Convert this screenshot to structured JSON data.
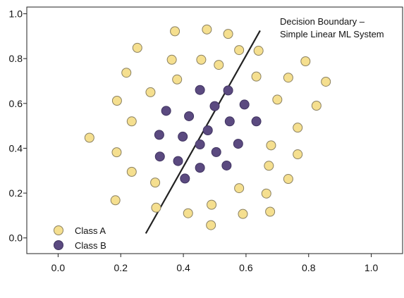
{
  "chart_data": {
    "type": "scatter",
    "title": "",
    "xlabel": "",
    "ylabel": "",
    "xlim": [
      -0.1,
      1.1
    ],
    "ylim": [
      -0.07,
      1.03
    ],
    "grid": false,
    "legend_position": "bottom-left",
    "x_ticks": [
      0.0,
      0.2,
      0.4,
      0.6,
      0.8,
      1.0
    ],
    "x_tick_labels": [
      "0.0",
      "0.2",
      "0.4",
      "0.6",
      "0.8",
      "1.0"
    ],
    "y_ticks": [
      0.0,
      0.2,
      0.4,
      0.6,
      0.8,
      1.0
    ],
    "y_tick_labels": [
      "0.0",
      "0.2",
      "0.4",
      "0.6",
      "0.8",
      "1.0"
    ],
    "annotation": {
      "line1": "Decision Boundary –",
      "line2": "Simple Linear ML System"
    },
    "boundary": {
      "x": [
        0.28,
        0.645
      ],
      "y": [
        0.02,
        0.925
      ],
      "color": "#222222"
    },
    "series": [
      {
        "name": "Class A",
        "color": "#f5df8f",
        "edge_color": "#8a8060",
        "points": [
          [
            0.373,
            0.922
          ],
          [
            0.475,
            0.93
          ],
          [
            0.543,
            0.91
          ],
          [
            0.253,
            0.848
          ],
          [
            0.363,
            0.795
          ],
          [
            0.457,
            0.795
          ],
          [
            0.513,
            0.772
          ],
          [
            0.578,
            0.838
          ],
          [
            0.64,
            0.835
          ],
          [
            0.218,
            0.737
          ],
          [
            0.38,
            0.707
          ],
          [
            0.295,
            0.65
          ],
          [
            0.633,
            0.72
          ],
          [
            0.735,
            0.715
          ],
          [
            0.79,
            0.788
          ],
          [
            0.855,
            0.697
          ],
          [
            0.188,
            0.612
          ],
          [
            0.7,
            0.617
          ],
          [
            0.825,
            0.59
          ],
          [
            0.235,
            0.52
          ],
          [
            0.1,
            0.447
          ],
          [
            0.765,
            0.492
          ],
          [
            0.187,
            0.382
          ],
          [
            0.68,
            0.413
          ],
          [
            0.765,
            0.373
          ],
          [
            0.235,
            0.295
          ],
          [
            0.31,
            0.247
          ],
          [
            0.673,
            0.322
          ],
          [
            0.578,
            0.222
          ],
          [
            0.735,
            0.263
          ],
          [
            0.183,
            0.168
          ],
          [
            0.313,
            0.135
          ],
          [
            0.415,
            0.11
          ],
          [
            0.49,
            0.148
          ],
          [
            0.665,
            0.198
          ],
          [
            0.59,
            0.107
          ],
          [
            0.677,
            0.117
          ],
          [
            0.488,
            0.057
          ]
        ]
      },
      {
        "name": "Class B",
        "color": "#5b4a80",
        "edge_color": "#3f3360",
        "points": [
          [
            0.453,
            0.66
          ],
          [
            0.543,
            0.658
          ],
          [
            0.345,
            0.567
          ],
          [
            0.5,
            0.588
          ],
          [
            0.595,
            0.595
          ],
          [
            0.418,
            0.543
          ],
          [
            0.548,
            0.52
          ],
          [
            0.633,
            0.52
          ],
          [
            0.323,
            0.46
          ],
          [
            0.398,
            0.452
          ],
          [
            0.478,
            0.48
          ],
          [
            0.453,
            0.417
          ],
          [
            0.575,
            0.42
          ],
          [
            0.325,
            0.363
          ],
          [
            0.383,
            0.343
          ],
          [
            0.505,
            0.383
          ],
          [
            0.538,
            0.323
          ],
          [
            0.453,
            0.313
          ],
          [
            0.405,
            0.265
          ]
        ]
      }
    ]
  }
}
